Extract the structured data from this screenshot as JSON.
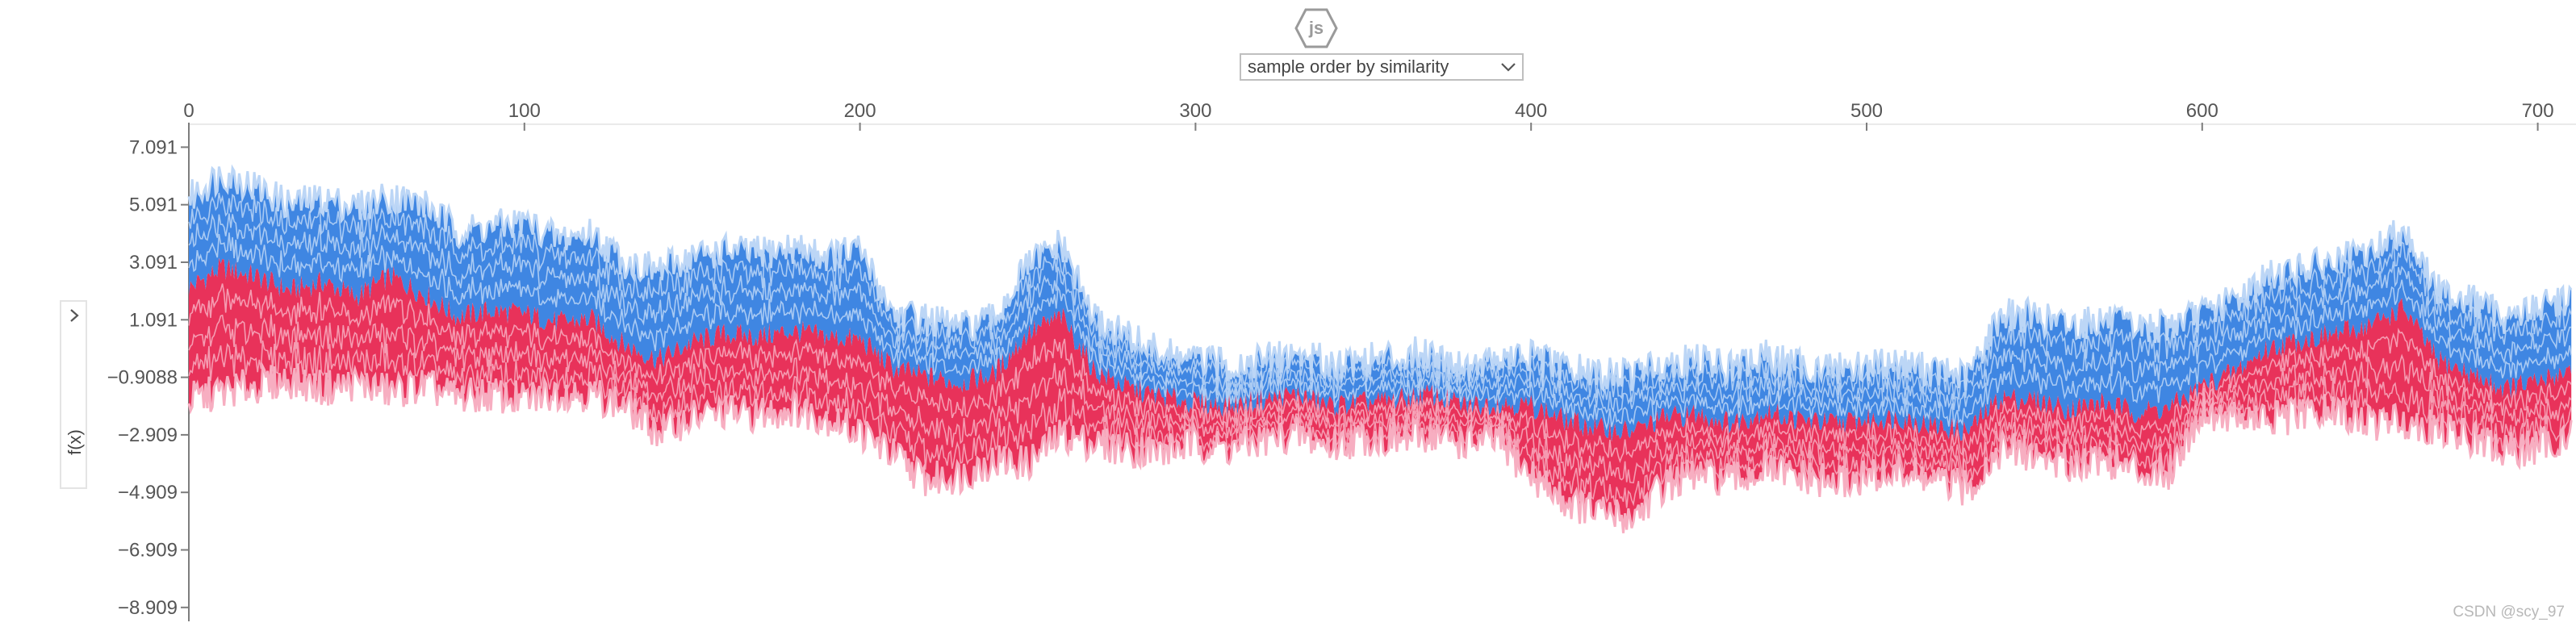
{
  "header": {
    "logo_text": "js",
    "order_select": {
      "selected": "sample order by similarity"
    }
  },
  "sidebar": {
    "ylabel": "f(x)"
  },
  "watermark": "CSDN @scy_97",
  "colors": {
    "positive": "#e8325a",
    "negative": "#3f86e2",
    "positive_light": "#f7aec1",
    "negative_light": "#bcd6f6",
    "axis": "#7d7d7d"
  },
  "chart_data": {
    "type": "area",
    "subtype": "shap-stacked-force-plot",
    "xlabel": "",
    "ylabel": "f(x)",
    "xlim": [
      0,
      710
    ],
    "ylim": [
      -8.909,
      7.091
    ],
    "x_ticks": [
      0,
      100,
      200,
      300,
      400,
      500,
      600,
      700
    ],
    "x_tick_labels": [
      "0",
      "100",
      "200",
      "300",
      "400",
      "500",
      "600",
      "700"
    ],
    "y_ticks": [
      7.091,
      5.091,
      3.091,
      1.091,
      -0.9088,
      -2.909,
      -4.909,
      -6.909,
      -8.909
    ],
    "y_tick_labels": [
      "7.091",
      "5.091",
      "3.091",
      "1.091",
      "−0.9088",
      "−2.909",
      "−4.909",
      "−6.909",
      "−8.909"
    ],
    "base_value": -0.9088,
    "x": [
      0,
      10,
      20,
      30,
      40,
      50,
      60,
      70,
      80,
      90,
      100,
      110,
      120,
      130,
      140,
      150,
      160,
      170,
      180,
      190,
      200,
      210,
      220,
      230,
      240,
      250,
      260,
      270,
      280,
      290,
      300,
      310,
      320,
      330,
      340,
      350,
      360,
      370,
      380,
      390,
      400,
      410,
      420,
      430,
      440,
      450,
      460,
      470,
      480,
      490,
      500,
      510,
      520,
      530,
      540,
      550,
      560,
      570,
      580,
      590,
      600,
      610,
      620,
      630,
      640,
      650,
      660,
      670,
      680,
      690,
      700,
      710
    ],
    "series": [
      {
        "name": "upper_bound",
        "values": [
          5.3,
          6.2,
          5.7,
          5.1,
          5.3,
          5.0,
          5.4,
          5.1,
          4.2,
          4.3,
          4.5,
          3.9,
          4.1,
          3.1,
          2.8,
          3.3,
          3.5,
          3.4,
          3.6,
          3.3,
          3.5,
          1.3,
          1.1,
          0.8,
          1.1,
          3.0,
          3.7,
          1.1,
          0.5,
          -0.1,
          -0.3,
          -0.5,
          -0.3,
          -0.1,
          -0.4,
          -0.3,
          -0.2,
          0.0,
          -0.5,
          -0.3,
          -0.2,
          -0.6,
          -0.8,
          -0.8,
          -0.4,
          -0.3,
          -0.6,
          -0.2,
          -0.5,
          -0.6,
          -0.5,
          -0.4,
          -0.7,
          -0.9,
          1.3,
          1.2,
          0.9,
          1.1,
          0.8,
          0.9,
          1.3,
          1.8,
          2.6,
          2.9,
          3.1,
          3.4,
          4.3,
          2.1,
          1.8,
          1.2,
          1.5,
          1.9
        ]
      },
      {
        "name": "prediction",
        "values": [
          2.2,
          2.9,
          2.6,
          2.1,
          2.4,
          1.9,
          2.6,
          2.0,
          1.2,
          1.4,
          1.3,
          1.0,
          1.1,
          0.2,
          -0.3,
          0.3,
          0.6,
          0.5,
          0.7,
          0.5,
          0.4,
          -0.6,
          -0.9,
          -1.1,
          -0.8,
          0.6,
          1.2,
          -0.7,
          -1.3,
          -1.6,
          -1.8,
          -1.9,
          -1.7,
          -1.5,
          -1.9,
          -1.8,
          -1.7,
          -1.5,
          -1.9,
          -1.8,
          -1.9,
          -2.4,
          -2.7,
          -2.8,
          -2.3,
          -2.2,
          -2.5,
          -2.1,
          -2.4,
          -2.5,
          -2.4,
          -2.3,
          -2.6,
          -2.8,
          -1.6,
          -1.7,
          -2.0,
          -1.8,
          -2.1,
          -2.0,
          -1.2,
          -0.7,
          0.1,
          0.4,
          0.6,
          0.9,
          1.5,
          -0.3,
          -0.8,
          -1.3,
          -1.1,
          -0.6
        ]
      },
      {
        "name": "lower_bound",
        "values": [
          -1.7,
          -1.4,
          -1.2,
          -1.0,
          -1.3,
          -1.1,
          -1.4,
          -1.2,
          -1.6,
          -1.5,
          -1.7,
          -1.4,
          -1.5,
          -1.9,
          -2.8,
          -2.3,
          -2.1,
          -2.2,
          -2.0,
          -2.3,
          -2.8,
          -3.6,
          -4.5,
          -4.3,
          -3.8,
          -3.9,
          -2.9,
          -3.2,
          -3.4,
          -3.5,
          -3.2,
          -3.4,
          -3.1,
          -2.9,
          -3.3,
          -3.0,
          -3.1,
          -2.9,
          -3.2,
          -3.1,
          -4.3,
          -5.2,
          -5.6,
          -5.8,
          -4.6,
          -4.3,
          -4.5,
          -4.1,
          -4.4,
          -4.6,
          -4.4,
          -4.2,
          -4.5,
          -4.8,
          -3.4,
          -3.6,
          -3.9,
          -3.7,
          -4.1,
          -4.2,
          -2.1,
          -2.3,
          -2.4,
          -2.2,
          -2.1,
          -2.5,
          -2.4,
          -2.7,
          -3.0,
          -3.5,
          -3.3,
          -2.9
        ]
      }
    ]
  }
}
